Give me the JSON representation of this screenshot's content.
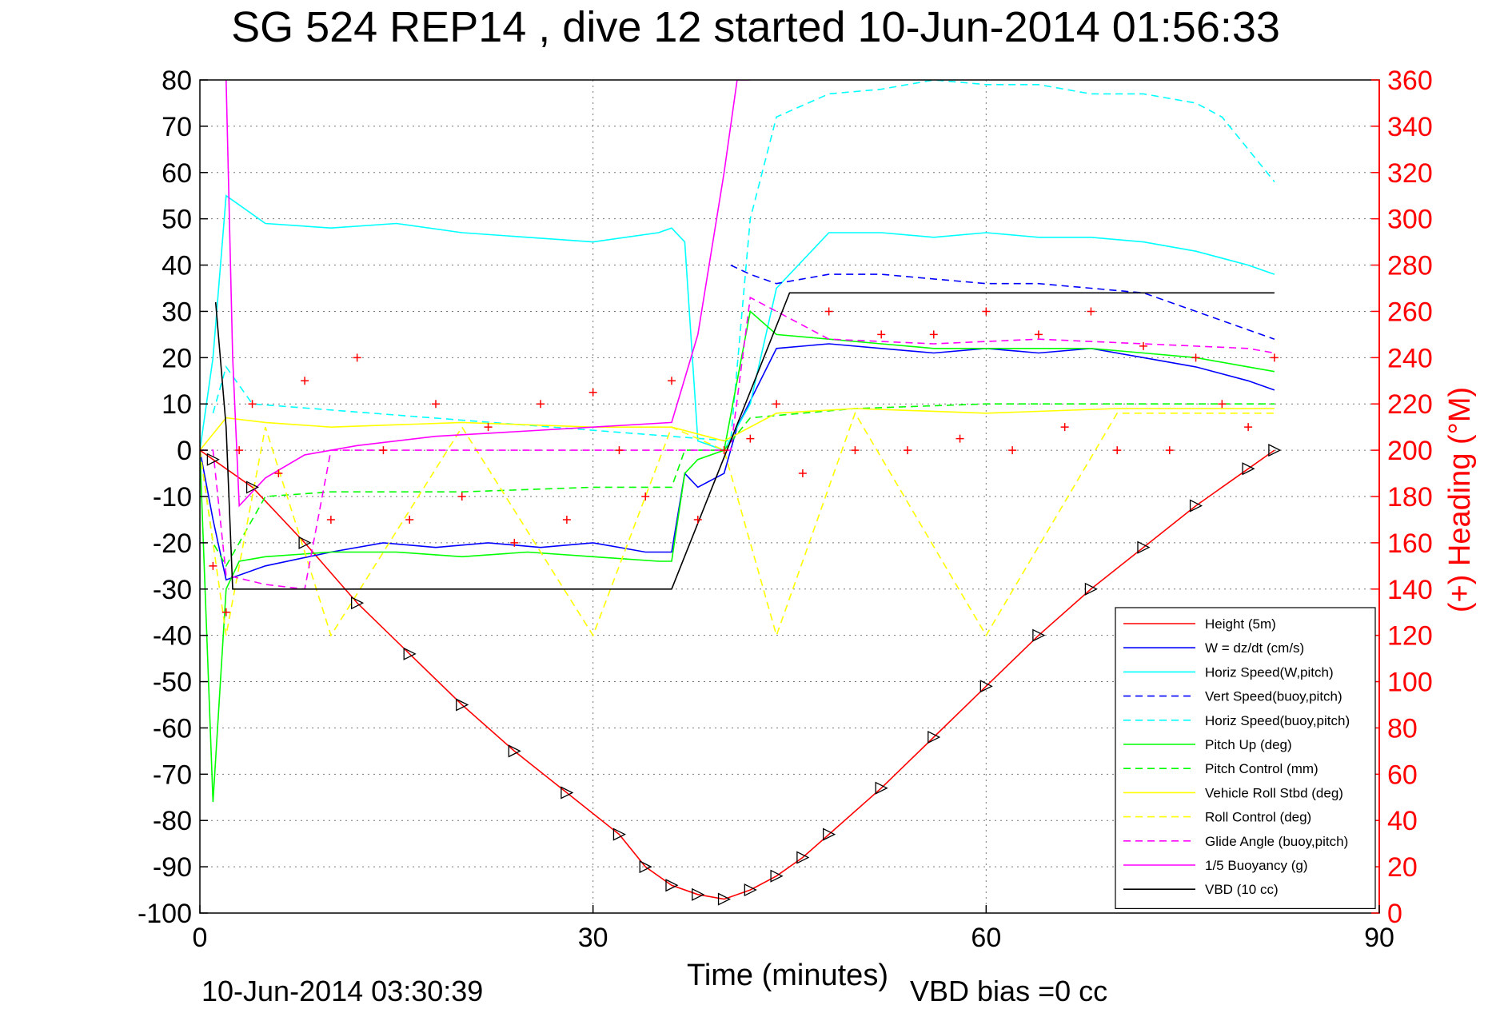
{
  "chart_data": {
    "type": "line",
    "title": "SG 524   REP14  , dive 12 started 10-Jun-2014 01:56:33",
    "xlabel": "Time (minutes)",
    "ylabel_right": "(+) Heading (°M)",
    "footer_left": "10-Jun-2014 03:30:39",
    "footer_right": "VBD bias =0 cc",
    "xlim": [
      0,
      90
    ],
    "ylim_left": [
      -100,
      80
    ],
    "ylim_right": [
      0,
      360
    ],
    "x_ticks": [
      "0",
      "30",
      "60",
      "90"
    ],
    "y_left_ticks": [
      "80",
      "70",
      "60",
      "50",
      "40",
      "30",
      "20",
      "10",
      "0",
      "-10",
      "-20",
      "-30",
      "-40",
      "-50",
      "-60",
      "-70",
      "-80",
      "-90",
      "-100"
    ],
    "y_right_ticks": [
      "360",
      "340",
      "320",
      "300",
      "280",
      "260",
      "240",
      "220",
      "200",
      "180",
      "160",
      "140",
      "120",
      "100",
      "80",
      "60",
      "40",
      "20",
      "0"
    ],
    "grid": true,
    "legend_position": "bottom-right",
    "colors": {
      "height": "#ff0000",
      "w": "#0000ff",
      "horiz_speed": "#00ffff",
      "pitch": "#00ff00",
      "roll": "#ffff00",
      "glide": "#ff00ff",
      "vbd": "#000000",
      "heading": "#ff0000"
    },
    "series": [
      {
        "name": "Height (5m)",
        "style": "solid",
        "color": "#ff0000",
        "x": [
          0,
          1,
          4,
          8,
          12,
          16,
          20,
          24,
          28,
          32,
          34,
          36,
          38,
          40,
          42,
          44,
          46,
          48,
          52,
          56,
          60,
          64,
          68,
          72,
          76,
          80,
          82
        ],
        "y": [
          0,
          -2,
          -8,
          -20,
          -33,
          -44,
          -55,
          -65,
          -74,
          -83,
          -90,
          -94,
          -96,
          -97,
          -95,
          -92,
          -88,
          -83,
          -73,
          -62,
          -51,
          -40,
          -30,
          -21,
          -12,
          -4,
          0
        ]
      },
      {
        "name": "W = dz/dt (cm/s)",
        "style": "solid",
        "color": "#0000ff",
        "x": [
          0,
          1,
          2,
          5,
          10,
          14,
          18,
          22,
          26,
          30,
          34,
          36,
          37,
          38,
          40,
          41,
          44,
          48,
          52,
          56,
          60,
          64,
          68,
          72,
          76,
          80,
          82
        ],
        "y": [
          0,
          -15,
          -28,
          -25,
          -22,
          -20,
          -21,
          -20,
          -21,
          -20,
          -22,
          -22,
          -5,
          -8,
          -5,
          5,
          22,
          23,
          22,
          21,
          22,
          21,
          22,
          20,
          18,
          15,
          13
        ]
      },
      {
        "name": "Horiz Speed(W,pitch)",
        "style": "solid",
        "color": "#00ffff",
        "x": [
          0,
          1,
          2,
          5,
          10,
          15,
          20,
          25,
          30,
          35,
          36,
          37,
          38,
          40,
          42,
          44,
          48,
          52,
          56,
          60,
          64,
          68,
          72,
          76,
          80,
          82
        ],
        "y": [
          0,
          20,
          55,
          49,
          48,
          49,
          47,
          46,
          45,
          47,
          48,
          45,
          2,
          0,
          10,
          35,
          47,
          47,
          46,
          47,
          46,
          46,
          45,
          43,
          40,
          38
        ]
      },
      {
        "name": "Vert Speed(buoy,pitch)",
        "style": "dashed",
        "color": "#0000ff",
        "x": [
          40.5,
          42,
          44,
          48,
          52,
          56,
          60,
          64,
          68,
          72,
          76,
          80,
          82
        ],
        "y": [
          40,
          38,
          36,
          38,
          38,
          37,
          36,
          36,
          35,
          34,
          30,
          26,
          24
        ]
      },
      {
        "name": "Horiz Speed(buoy,pitch)",
        "style": "dashed",
        "color": "#00ffff",
        "x": [
          1,
          2,
          4,
          40.5,
          42,
          44,
          48,
          52,
          56,
          60,
          64,
          68,
          72,
          76,
          78,
          80,
          82
        ],
        "y": [
          8,
          18,
          10,
          2,
          50,
          72,
          77,
          78,
          80,
          79,
          79,
          77,
          77,
          75,
          72,
          65,
          58
        ]
      },
      {
        "name": "Pitch Up (deg)",
        "style": "solid",
        "color": "#00ff00",
        "x": [
          0,
          1,
          2,
          3,
          5,
          10,
          15,
          20,
          25,
          30,
          35,
          36,
          37,
          38,
          40,
          42,
          44,
          48,
          52,
          56,
          60,
          64,
          68,
          72,
          76,
          80,
          82
        ],
        "y": [
          0,
          -76,
          -30,
          -24,
          -23,
          -22,
          -22,
          -23,
          -22,
          -23,
          -24,
          -24,
          -5,
          -2,
          0,
          30,
          25,
          24,
          23,
          22,
          22,
          22,
          22,
          21,
          20,
          18,
          17
        ]
      },
      {
        "name": "Pitch Control (mm)",
        "style": "dashed",
        "color": "#00ff00",
        "x": [
          0,
          1,
          2,
          5,
          10,
          20,
          30,
          36,
          37,
          38,
          40,
          42,
          50,
          60,
          70,
          82
        ],
        "y": [
          0,
          -20,
          -25,
          -10,
          -9,
          -9,
          -8,
          -8,
          0,
          0,
          0,
          7,
          9,
          10,
          10,
          10
        ]
      },
      {
        "name": "Vehicle Roll Stbd (deg)",
        "style": "solid",
        "color": "#ffff00",
        "x": [
          0,
          2,
          5,
          10,
          20,
          30,
          36,
          40,
          44,
          50,
          60,
          70,
          82
        ],
        "y": [
          0,
          7,
          6,
          5,
          6,
          5,
          5,
          2,
          8,
          9,
          8,
          9,
          9
        ]
      },
      {
        "name": "Roll Control (deg)",
        "style": "dashed",
        "color": "#ffff00",
        "x": [
          0,
          2,
          5,
          10,
          20,
          30,
          36,
          40,
          44,
          50,
          60,
          70,
          82
        ],
        "y": [
          0,
          -40,
          5,
          -40,
          5,
          -40,
          5,
          0,
          -40,
          8,
          -40,
          8,
          8
        ]
      },
      {
        "name": "Glide Angle (buoy,pitch)",
        "style": "dashed",
        "color": "#ff00ff",
        "x": [
          0,
          1,
          2,
          5,
          8,
          10,
          20,
          30,
          40.5,
          42,
          48,
          56,
          64,
          72,
          80,
          82
        ],
        "y": [
          0,
          0,
          -27,
          -29,
          -30,
          0,
          0,
          0,
          0,
          33,
          24,
          23,
          24,
          23,
          22,
          21
        ]
      },
      {
        "name": "1/5 Buoyancy (g)",
        "style": "solid",
        "color": "#ff00ff",
        "x": [
          2,
          2.5,
          3,
          5,
          8,
          12,
          18,
          24,
          30,
          36,
          38,
          40,
          41,
          42
        ],
        "y": [
          80,
          20,
          -12,
          -6,
          -1,
          1,
          3,
          4,
          5,
          6,
          25,
          60,
          80,
          80
        ]
      },
      {
        "name": "VBD (10 cc)",
        "style": "solid",
        "color": "#000000",
        "x": [
          1.2,
          2,
          2.5,
          36,
          45,
          82
        ],
        "y": [
          32,
          5,
          -30,
          -30,
          34,
          34
        ]
      },
      {
        "name": "Heading",
        "style": "markers",
        "color": "#ff0000",
        "x": [
          0,
          1,
          2,
          3,
          4,
          6,
          8,
          10,
          12,
          14,
          16,
          18,
          20,
          22,
          24,
          26,
          28,
          30,
          32,
          34,
          36,
          38,
          40,
          42,
          44,
          46,
          48,
          50,
          52,
          54,
          56,
          58,
          60,
          62,
          64,
          66,
          68,
          70,
          72,
          74,
          76,
          78,
          80,
          82
        ],
        "y": [
          200,
          150,
          130,
          200,
          220,
          190,
          230,
          170,
          240,
          200,
          170,
          220,
          180,
          210,
          160,
          220,
          170,
          225,
          200,
          180,
          230,
          170,
          200,
          205,
          220,
          190,
          260,
          200,
          250,
          200,
          250,
          205,
          260,
          200,
          250,
          210,
          260,
          200,
          245,
          200,
          240,
          220,
          210,
          240
        ]
      }
    ]
  }
}
